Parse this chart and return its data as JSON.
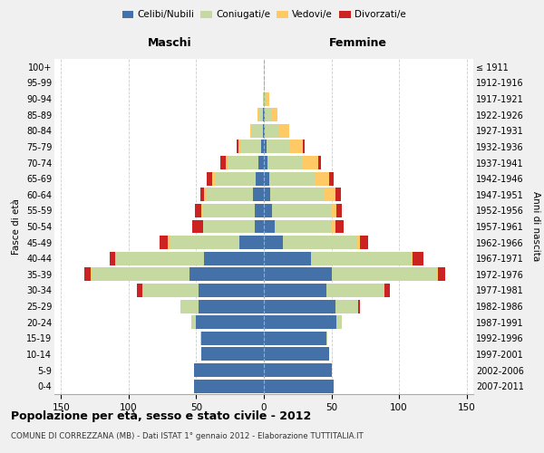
{
  "age_groups": [
    "0-4",
    "5-9",
    "10-14",
    "15-19",
    "20-24",
    "25-29",
    "30-34",
    "35-39",
    "40-44",
    "45-49",
    "50-54",
    "55-59",
    "60-64",
    "65-69",
    "70-74",
    "75-79",
    "80-84",
    "85-89",
    "90-94",
    "95-99",
    "100+"
  ],
  "birth_years": [
    "2007-2011",
    "2002-2006",
    "1997-2001",
    "1992-1996",
    "1987-1991",
    "1982-1986",
    "1977-1981",
    "1972-1976",
    "1967-1971",
    "1962-1966",
    "1957-1961",
    "1952-1956",
    "1947-1951",
    "1942-1946",
    "1937-1941",
    "1932-1936",
    "1927-1931",
    "1922-1926",
    "1917-1921",
    "1912-1916",
    "≤ 1911"
  ],
  "males": {
    "celibi": [
      52,
      52,
      46,
      46,
      50,
      48,
      48,
      55,
      44,
      18,
      7,
      7,
      8,
      6,
      4,
      2,
      1,
      1,
      0,
      0,
      0
    ],
    "coniugati": [
      0,
      0,
      0,
      1,
      4,
      14,
      42,
      72,
      66,
      52,
      38,
      38,
      35,
      30,
      22,
      15,
      8,
      3,
      1,
      0,
      0
    ],
    "vedovi": [
      0,
      0,
      0,
      0,
      0,
      0,
      0,
      1,
      0,
      1,
      0,
      1,
      1,
      2,
      2,
      2,
      1,
      1,
      0,
      0,
      0
    ],
    "divorziati": [
      0,
      0,
      0,
      0,
      0,
      0,
      4,
      5,
      4,
      6,
      8,
      5,
      3,
      4,
      4,
      1,
      0,
      0,
      0,
      0,
      0
    ]
  },
  "females": {
    "nubili": [
      52,
      50,
      48,
      46,
      54,
      53,
      46,
      50,
      35,
      14,
      8,
      6,
      5,
      4,
      3,
      2,
      1,
      1,
      0,
      0,
      0
    ],
    "coniugate": [
      0,
      0,
      0,
      1,
      4,
      17,
      43,
      78,
      74,
      55,
      42,
      44,
      40,
      34,
      25,
      17,
      10,
      5,
      2,
      1,
      0
    ],
    "vedove": [
      0,
      0,
      0,
      0,
      0,
      0,
      0,
      1,
      1,
      2,
      3,
      4,
      8,
      10,
      12,
      10,
      8,
      4,
      2,
      0,
      0
    ],
    "divorziate": [
      0,
      0,
      0,
      0,
      0,
      1,
      4,
      5,
      8,
      6,
      6,
      4,
      4,
      4,
      2,
      1,
      0,
      0,
      0,
      0,
      0
    ]
  },
  "colors": {
    "celibi": "#4472a8",
    "coniugati": "#c5d9a0",
    "vedovi": "#ffc966",
    "divorziati": "#cc2222"
  },
  "xlim": 155,
  "title": "Popolazione per età, sesso e stato civile - 2012",
  "subtitle": "COMUNE DI CORREZZANA (MB) - Dati ISTAT 1° gennaio 2012 - Elaborazione TUTTITALIA.IT",
  "xlabel_left": "Maschi",
  "xlabel_right": "Femmine",
  "ylabel_left": "Fasce di età",
  "ylabel_right": "Anni di nascita",
  "bg_color": "#f0f0f0",
  "plot_bg": "#ffffff",
  "grid_color": "#cccccc",
  "legend_labels": [
    "Celibi/Nubili",
    "Coniugati/e",
    "Vedovi/e",
    "Divorzati/e"
  ]
}
